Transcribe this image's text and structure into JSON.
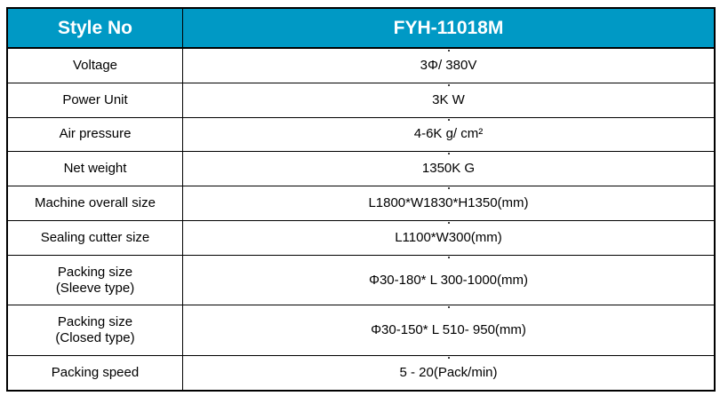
{
  "page": {
    "background": "#ffffff"
  },
  "table": {
    "title": "machine-specification-table",
    "colors": {
      "header_bg": "#0099c5",
      "header_text": "#ffffff",
      "body_text": "#000000",
      "border": "#000000"
    },
    "header": {
      "label": "Style No",
      "value": "FYH-11018M"
    },
    "rows": [
      {
        "label": "Voltage",
        "value": "3Φ/ 380V"
      },
      {
        "label": "Power Unit",
        "value": "3K W"
      },
      {
        "label": "Air pressure",
        "value": "4-6K g/ cm²"
      },
      {
        "label": "Net weight",
        "value": "1350K G"
      },
      {
        "label": "Machine overall size",
        "value": "L1800*W1830*H1350(mm)"
      },
      {
        "label": "Sealing cutter size",
        "value": "L1100*W300(mm)"
      },
      {
        "label": "Packing size\n(Sleeve type)",
        "value": "Φ30-180* L 300-1000(mm)"
      },
      {
        "label": "Packing size\n(Closed type)",
        "value": "Φ30-150* L 510- 950(mm)"
      },
      {
        "label": "Packing speed",
        "value": "5 - 20(Pack/min)"
      }
    ]
  }
}
